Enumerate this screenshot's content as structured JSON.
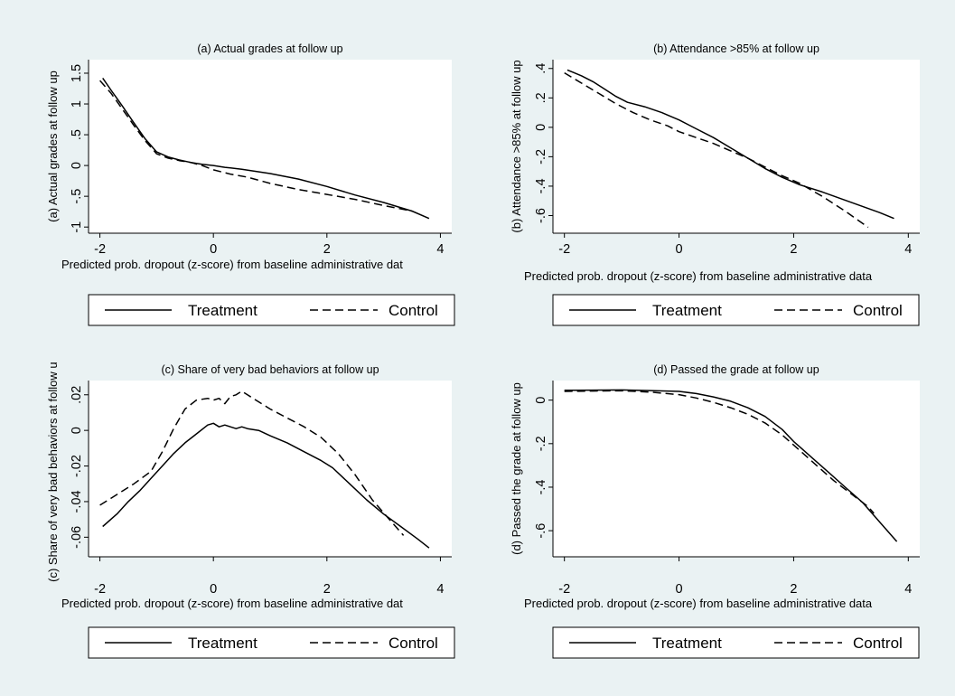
{
  "chart_data": [
    {
      "type": "line",
      "title": "(a) Actual grades at follow up",
      "ylabel": "(a) Actual grades at follow up",
      "xlabel": "Predicted prob. dropout (z-score) from baseline administrative dat",
      "xlim": [
        -2.2,
        4.2
      ],
      "ylim": [
        -1.1,
        1.72
      ],
      "xticks": [
        -2,
        0,
        2,
        4
      ],
      "xtick_labels": [
        "-2",
        "0",
        "2",
        "4"
      ],
      "yticks": [
        1.5,
        1,
        0.5,
        0,
        -0.5,
        -1
      ],
      "ytick_labels": [
        "1.5",
        "1",
        ".5",
        "0",
        "-.5",
        "-1"
      ],
      "grid": false,
      "legend": "bottom",
      "series": [
        {
          "name": "Treatment",
          "dash": "solid",
          "x": [
            -1.95,
            -1.8,
            -1.6,
            -1.4,
            -1.2,
            -1.0,
            -0.8,
            -0.6,
            -0.4,
            -0.2,
            0.0,
            0.2,
            0.5,
            1.0,
            1.5,
            2.0,
            2.5,
            3.0,
            3.5,
            3.8
          ],
          "y": [
            1.42,
            1.22,
            0.96,
            0.69,
            0.43,
            0.22,
            0.14,
            0.09,
            0.05,
            0.02,
            0.0,
            -0.03,
            -0.06,
            -0.13,
            -0.22,
            -0.34,
            -0.48,
            -0.6,
            -0.74,
            -0.86
          ]
        },
        {
          "name": "Control",
          "dash": "dashed",
          "x": [
            -2.0,
            -1.8,
            -1.6,
            -1.4,
            -1.2,
            -1.0,
            -0.8,
            -0.6,
            -0.4,
            -0.2,
            0.0,
            0.3,
            0.6,
            1.0,
            1.5,
            2.0,
            2.5,
            3.0,
            3.5
          ],
          "y": [
            1.38,
            1.17,
            0.91,
            0.65,
            0.4,
            0.19,
            0.12,
            0.08,
            0.05,
            0.0,
            -0.07,
            -0.14,
            -0.19,
            -0.29,
            -0.39,
            -0.47,
            -0.55,
            -0.65,
            -0.74
          ]
        }
      ]
    },
    {
      "type": "line",
      "title": "(b) Attendance >85% at follow up",
      "ylabel": "(b) Attendance >85% at follow up",
      "xlabel": "Predicted prob. dropout (z-score) from baseline administrative data",
      "xlim": [
        -2.2,
        4.2
      ],
      "ylim": [
        -0.72,
        0.46
      ],
      "xticks": [
        -2,
        0,
        2,
        4
      ],
      "xtick_labels": [
        "-2",
        "0",
        "2",
        "4"
      ],
      "yticks": [
        0.4,
        0.2,
        0,
        -0.2,
        -0.4,
        -0.6
      ],
      "ytick_labels": [
        ".4",
        ".2",
        "0",
        "-.2",
        "-.4",
        "-.6"
      ],
      "grid": false,
      "legend": "bottom",
      "series": [
        {
          "name": "Treatment",
          "dash": "solid",
          "x": [
            -1.95,
            -1.7,
            -1.5,
            -1.3,
            -1.1,
            -0.9,
            -0.6,
            -0.3,
            0.0,
            0.3,
            0.6,
            0.9,
            1.2,
            1.5,
            1.8,
            2.1,
            2.5,
            3.0,
            3.5,
            3.75
          ],
          "y": [
            0.39,
            0.35,
            0.31,
            0.26,
            0.21,
            0.17,
            0.14,
            0.1,
            0.05,
            -0.01,
            -0.07,
            -0.14,
            -0.21,
            -0.28,
            -0.34,
            -0.39,
            -0.44,
            -0.51,
            -0.58,
            -0.62
          ]
        },
        {
          "name": "Control",
          "dash": "dashed",
          "x": [
            -2.0,
            -1.7,
            -1.4,
            -1.1,
            -0.8,
            -0.5,
            -0.2,
            0.0,
            0.3,
            0.6,
            0.9,
            1.2,
            1.5,
            1.8,
            2.1,
            2.5,
            2.9,
            3.3
          ],
          "y": [
            0.37,
            0.3,
            0.23,
            0.16,
            0.1,
            0.05,
            0.01,
            -0.03,
            -0.07,
            -0.11,
            -0.16,
            -0.21,
            -0.27,
            -0.33,
            -0.38,
            -0.47,
            -0.57,
            -0.68
          ]
        }
      ]
    },
    {
      "type": "line",
      "title": "(c) Share of very bad behaviors at follow up",
      "ylabel": "(c) Share of very bad behaviors at follow up",
      "xlabel": "Predicted prob. dropout (z-score) from baseline administrative dat",
      "xlim": [
        -2.2,
        4.2
      ],
      "ylim": [
        -0.071,
        0.028
      ],
      "xticks": [
        -2,
        0,
        2,
        4
      ],
      "xtick_labels": [
        "-2",
        "0",
        "2",
        "4"
      ],
      "yticks": [
        0.02,
        0,
        -0.02,
        -0.04,
        -0.06
      ],
      "ytick_labels": [
        ".02",
        "0",
        "-.02",
        "-.04",
        "-.06"
      ],
      "grid": false,
      "legend": "bottom",
      "series": [
        {
          "name": "Treatment",
          "dash": "solid",
          "x": [
            -1.95,
            -1.7,
            -1.5,
            -1.3,
            -1.1,
            -0.9,
            -0.7,
            -0.5,
            -0.3,
            -0.1,
            0.0,
            0.1,
            0.2,
            0.3,
            0.4,
            0.5,
            0.6,
            0.8,
            1.0,
            1.3,
            1.6,
            1.9,
            2.1,
            2.4,
            2.7,
            3.0,
            3.3,
            3.6,
            3.8
          ],
          "y": [
            -0.054,
            -0.047,
            -0.04,
            -0.034,
            -0.027,
            -0.02,
            -0.013,
            -0.007,
            -0.002,
            0.003,
            0.004,
            0.002,
            0.003,
            0.002,
            0.001,
            0.002,
            0.001,
            0.0,
            -0.003,
            -0.007,
            -0.012,
            -0.017,
            -0.021,
            -0.03,
            -0.039,
            -0.047,
            -0.054,
            -0.061,
            -0.066
          ]
        },
        {
          "name": "Control",
          "dash": "dashed",
          "x": [
            -2.0,
            -1.7,
            -1.4,
            -1.1,
            -0.9,
            -0.7,
            -0.5,
            -0.3,
            -0.1,
            0.0,
            0.1,
            0.2,
            0.3,
            0.4,
            0.5,
            0.6,
            0.8,
            1.0,
            1.3,
            1.6,
            1.9,
            2.2,
            2.5,
            2.8,
            3.1,
            3.35
          ],
          "y": [
            -0.042,
            -0.036,
            -0.03,
            -0.023,
            -0.012,
            0.001,
            0.012,
            0.017,
            0.018,
            0.017,
            0.018,
            0.015,
            0.019,
            0.02,
            0.022,
            0.02,
            0.016,
            0.012,
            0.007,
            0.002,
            -0.004,
            -0.013,
            -0.025,
            -0.039,
            -0.05,
            -0.059
          ]
        }
      ]
    },
    {
      "type": "line",
      "title": "(d) Passed the grade at follow up",
      "ylabel": "(d) Passed the grade at follow up",
      "xlabel": "Predicted prob. dropout (z-score) from baseline administrative data",
      "xlim": [
        -2.2,
        4.2
      ],
      "ylim": [
        -0.72,
        0.09
      ],
      "xticks": [
        -2,
        0,
        2,
        4
      ],
      "xtick_labels": [
        "-2",
        "0",
        "2",
        "4"
      ],
      "yticks": [
        0,
        -0.2,
        -0.4,
        -0.6
      ],
      "ytick_labels": [
        "0",
        "-.2",
        "-.4",
        "-.6"
      ],
      "grid": false,
      "legend": "bottom",
      "series": [
        {
          "name": "Treatment",
          "dash": "solid",
          "x": [
            -2.0,
            -1.5,
            -1.0,
            -0.5,
            0.0,
            0.3,
            0.6,
            0.9,
            1.2,
            1.5,
            1.8,
            2.0,
            2.3,
            2.6,
            2.9,
            3.2,
            3.5,
            3.8
          ],
          "y": [
            0.045,
            0.046,
            0.047,
            0.044,
            0.04,
            0.03,
            0.015,
            -0.005,
            -0.035,
            -0.075,
            -0.135,
            -0.19,
            -0.26,
            -0.33,
            -0.4,
            -0.47,
            -0.56,
            -0.65
          ]
        },
        {
          "name": "Control",
          "dash": "dashed",
          "x": [
            -2.0,
            -1.5,
            -1.0,
            -0.5,
            0.0,
            0.3,
            0.6,
            0.9,
            1.2,
            1.5,
            1.8,
            2.1,
            2.4,
            2.7,
            3.0,
            3.3,
            3.4
          ],
          "y": [
            0.04,
            0.042,
            0.043,
            0.037,
            0.025,
            0.01,
            -0.01,
            -0.035,
            -0.065,
            -0.105,
            -0.16,
            -0.23,
            -0.3,
            -0.37,
            -0.43,
            -0.49,
            -0.52
          ]
        }
      ]
    }
  ]
}
